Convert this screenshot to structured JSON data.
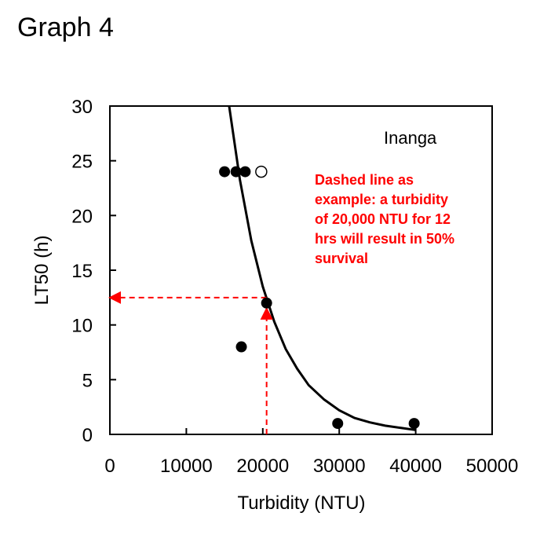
{
  "header": {
    "title": "Graph 4"
  },
  "chart_data": {
    "type": "scatter",
    "title": "Graph 4",
    "xlabel": "Turbidity (NTU)",
    "ylabel": "LT50 (h)",
    "xlim": [
      0,
      50000
    ],
    "ylim": [
      0,
      30
    ],
    "xticks": [
      0,
      10000,
      20000,
      30000,
      40000,
      50000
    ],
    "yticks": [
      0,
      5,
      10,
      15,
      20,
      25,
      30
    ],
    "grid": false,
    "series": [
      {
        "name": "filled",
        "marker": "filled-circle",
        "points": [
          [
            15000,
            24
          ],
          [
            16500,
            24
          ],
          [
            17700,
            24
          ],
          [
            20500,
            12
          ],
          [
            17200,
            8
          ],
          [
            29800,
            1
          ],
          [
            39800,
            1
          ]
        ]
      },
      {
        "name": "open",
        "marker": "open-circle",
        "points": [
          [
            19800,
            24
          ]
        ]
      },
      {
        "name": "fit",
        "marker": "line",
        "points": [
          [
            15600,
            30
          ],
          [
            17000,
            23.3
          ],
          [
            18500,
            17.7
          ],
          [
            20000,
            13.5
          ],
          [
            21500,
            10.3
          ],
          [
            23000,
            7.8
          ],
          [
            24500,
            6.0
          ],
          [
            26000,
            4.5
          ],
          [
            28000,
            3.2
          ],
          [
            30000,
            2.2
          ],
          [
            32000,
            1.5
          ],
          [
            34000,
            1.1
          ],
          [
            36000,
            0.8
          ],
          [
            38000,
            0.6
          ],
          [
            40000,
            0.4
          ]
        ]
      }
    ],
    "annotations": {
      "species": "Inanga",
      "note_lines": [
        "Dashed line as",
        "example: a turbidity",
        "of 20,000 NTU for 12",
        "hrs will  result in  50%",
        "survival"
      ],
      "dashed_example": {
        "x": 20500,
        "y": 12.5
      },
      "note_color": "#ff0000"
    }
  }
}
